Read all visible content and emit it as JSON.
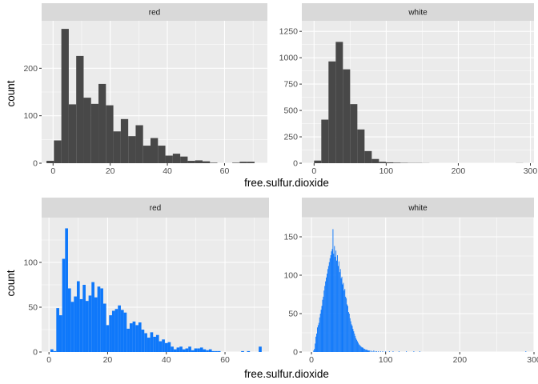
{
  "theme": {
    "panel_bg": "#ebebeb",
    "strip_bg": "#d9d9d9",
    "grid_major": "#ffffff",
    "top_bar_fill": "#484848",
    "bottom_bar_fill": "#0f78fa"
  },
  "chart_data": [
    {
      "type": "bar",
      "subtype": "histogram",
      "ylabel": "count",
      "xlabel": "free.sulfur.dioxide",
      "panels": [
        {
          "facet": "red",
          "xlim": [
            -4,
            75
          ],
          "ylim": [
            0,
            300
          ],
          "xticks": [
            0,
            20,
            40,
            60
          ],
          "yticks": [
            0,
            100,
            200
          ],
          "binwidth": 2.6,
          "bins": [
            {
              "x": -1.0,
              "count": 5
            },
            {
              "x": 1.6,
              "count": 48
            },
            {
              "x": 4.2,
              "count": 283
            },
            {
              "x": 6.8,
              "count": 124
            },
            {
              "x": 9.4,
              "count": 226
            },
            {
              "x": 12.0,
              "count": 138
            },
            {
              "x": 14.6,
              "count": 125
            },
            {
              "x": 17.2,
              "count": 167
            },
            {
              "x": 19.8,
              "count": 122
            },
            {
              "x": 22.4,
              "count": 67
            },
            {
              "x": 25.0,
              "count": 93
            },
            {
              "x": 27.6,
              "count": 57
            },
            {
              "x": 30.2,
              "count": 80
            },
            {
              "x": 32.8,
              "count": 37
            },
            {
              "x": 35.4,
              "count": 53
            },
            {
              "x": 38.0,
              "count": 37
            },
            {
              "x": 40.6,
              "count": 16
            },
            {
              "x": 43.2,
              "count": 20
            },
            {
              "x": 45.8,
              "count": 14
            },
            {
              "x": 48.4,
              "count": 5
            },
            {
              "x": 51.0,
              "count": 6
            },
            {
              "x": 53.6,
              "count": 4
            },
            {
              "x": 56.2,
              "count": 1
            },
            {
              "x": 58.8,
              "count": 0
            },
            {
              "x": 61.4,
              "count": 0
            },
            {
              "x": 64.0,
              "count": 1
            },
            {
              "x": 66.6,
              "count": 3
            },
            {
              "x": 69.2,
              "count": 3
            }
          ]
        },
        {
          "facet": "white",
          "xlim": [
            -17,
            305
          ],
          "ylim": [
            0,
            1350
          ],
          "xticks": [
            0,
            100,
            200,
            300
          ],
          "yticks": [
            0,
            250,
            500,
            750,
            1000,
            1250
          ],
          "binwidth": 10,
          "bins": [
            {
              "x": 5,
              "count": 25
            },
            {
              "x": 15,
              "count": 413
            },
            {
              "x": 25,
              "count": 965
            },
            {
              "x": 35,
              "count": 1150
            },
            {
              "x": 45,
              "count": 890
            },
            {
              "x": 55,
              "count": 560
            },
            {
              "x": 65,
              "count": 320
            },
            {
              "x": 75,
              "count": 115
            },
            {
              "x": 85,
              "count": 40
            },
            {
              "x": 95,
              "count": 13
            },
            {
              "x": 105,
              "count": 8
            },
            {
              "x": 115,
              "count": 5
            },
            {
              "x": 125,
              "count": 3
            },
            {
              "x": 135,
              "count": 2
            },
            {
              "x": 145,
              "count": 2
            },
            {
              "x": 155,
              "count": 1
            },
            {
              "x": 285,
              "count": 1
            }
          ]
        }
      ]
    },
    {
      "type": "bar",
      "subtype": "histogram",
      "ylabel": "count",
      "xlabel": "free.sulfur.dioxide",
      "panels": [
        {
          "facet": "red",
          "xlim": [
            -2.5,
            75
          ],
          "ylim": [
            0,
            150
          ],
          "xticks": [
            0,
            20,
            40,
            60
          ],
          "yticks": [
            0,
            50,
            100
          ],
          "binwidth": 1,
          "bins": [
            {
              "x": 1,
              "count": 3
            },
            {
              "x": 2,
              "count": 1
            },
            {
              "x": 3,
              "count": 49
            },
            {
              "x": 4,
              "count": 41
            },
            {
              "x": 5,
              "count": 104
            },
            {
              "x": 6,
              "count": 138
            },
            {
              "x": 7,
              "count": 71
            },
            {
              "x": 8,
              "count": 56
            },
            {
              "x": 9,
              "count": 62
            },
            {
              "x": 10,
              "count": 79
            },
            {
              "x": 11,
              "count": 59
            },
            {
              "x": 12,
              "count": 75
            },
            {
              "x": 13,
              "count": 57
            },
            {
              "x": 14,
              "count": 63
            },
            {
              "x": 15,
              "count": 78
            },
            {
              "x": 16,
              "count": 61
            },
            {
              "x": 17,
              "count": 73
            },
            {
              "x": 18,
              "count": 71
            },
            {
              "x": 19,
              "count": 54
            },
            {
              "x": 20,
              "count": 30
            },
            {
              "x": 21,
              "count": 41
            },
            {
              "x": 22,
              "count": 46
            },
            {
              "x": 23,
              "count": 48
            },
            {
              "x": 24,
              "count": 52
            },
            {
              "x": 25,
              "count": 47
            },
            {
              "x": 26,
              "count": 44
            },
            {
              "x": 27,
              "count": 26
            },
            {
              "x": 28,
              "count": 32
            },
            {
              "x": 29,
              "count": 34
            },
            {
              "x": 30,
              "count": 30
            },
            {
              "x": 31,
              "count": 33
            },
            {
              "x": 32,
              "count": 25
            },
            {
              "x": 33,
              "count": 21
            },
            {
              "x": 34,
              "count": 16
            },
            {
              "x": 35,
              "count": 22
            },
            {
              "x": 36,
              "count": 17
            },
            {
              "x": 37,
              "count": 19
            },
            {
              "x": 38,
              "count": 12
            },
            {
              "x": 39,
              "count": 14
            },
            {
              "x": 40,
              "count": 10
            },
            {
              "x": 41,
              "count": 11
            },
            {
              "x": 42,
              "count": 6
            },
            {
              "x": 43,
              "count": 3
            },
            {
              "x": 44,
              "count": 5
            },
            {
              "x": 45,
              "count": 6
            },
            {
              "x": 46,
              "count": 3
            },
            {
              "x": 47,
              "count": 4
            },
            {
              "x": 48,
              "count": 6
            },
            {
              "x": 49,
              "count": 2
            },
            {
              "x": 50,
              "count": 4
            },
            {
              "x": 51,
              "count": 4
            },
            {
              "x": 52,
              "count": 5
            },
            {
              "x": 53,
              "count": 3
            },
            {
              "x": 54,
              "count": 2
            },
            {
              "x": 55,
              "count": 3
            },
            {
              "x": 56,
              "count": 1
            },
            {
              "x": 57,
              "count": 1
            },
            {
              "x": 58,
              "count": 1
            },
            {
              "x": 66,
              "count": 1
            },
            {
              "x": 68,
              "count": 1
            },
            {
              "x": 72,
              "count": 6
            }
          ]
        },
        {
          "facet": "white",
          "xlim": [
            -13,
            300
          ],
          "ylim": [
            0,
            175
          ],
          "xticks": [
            0,
            100,
            200,
            300
          ],
          "yticks": [
            0,
            50,
            100,
            150
          ],
          "binwidth": 1,
          "bins": [
            {
              "x": 3,
              "count": 2
            },
            {
              "x": 4,
              "count": 4
            },
            {
              "x": 5,
              "count": 11
            },
            {
              "x": 6,
              "count": 20
            },
            {
              "x": 7,
              "count": 24
            },
            {
              "x": 8,
              "count": 32
            },
            {
              "x": 9,
              "count": 35
            },
            {
              "x": 10,
              "count": 38
            },
            {
              "x": 11,
              "count": 45
            },
            {
              "x": 12,
              "count": 50
            },
            {
              "x": 13,
              "count": 55
            },
            {
              "x": 14,
              "count": 60
            },
            {
              "x": 15,
              "count": 68
            },
            {
              "x": 16,
              "count": 72
            },
            {
              "x": 17,
              "count": 80
            },
            {
              "x": 18,
              "count": 86
            },
            {
              "x": 19,
              "count": 92
            },
            {
              "x": 20,
              "count": 97
            },
            {
              "x": 21,
              "count": 102
            },
            {
              "x": 22,
              "count": 108
            },
            {
              "x": 23,
              "count": 112
            },
            {
              "x": 24,
              "count": 117
            },
            {
              "x": 25,
              "count": 122
            },
            {
              "x": 26,
              "count": 126
            },
            {
              "x": 27,
              "count": 131
            },
            {
              "x": 28,
              "count": 134
            },
            {
              "x": 29,
              "count": 160
            },
            {
              "x": 30,
              "count": 128
            },
            {
              "x": 31,
              "count": 138
            },
            {
              "x": 32,
              "count": 124
            },
            {
              "x": 33,
              "count": 132
            },
            {
              "x": 34,
              "count": 119
            },
            {
              "x": 35,
              "count": 126
            },
            {
              "x": 36,
              "count": 112
            },
            {
              "x": 37,
              "count": 118
            },
            {
              "x": 38,
              "count": 104
            },
            {
              "x": 39,
              "count": 108
            },
            {
              "x": 40,
              "count": 96
            },
            {
              "x": 41,
              "count": 98
            },
            {
              "x": 42,
              "count": 88
            },
            {
              "x": 43,
              "count": 90
            },
            {
              "x": 44,
              "count": 80
            },
            {
              "x": 45,
              "count": 82
            },
            {
              "x": 46,
              "count": 72
            },
            {
              "x": 47,
              "count": 70
            },
            {
              "x": 48,
              "count": 62
            },
            {
              "x": 49,
              "count": 60
            },
            {
              "x": 50,
              "count": 52
            },
            {
              "x": 51,
              "count": 50
            },
            {
              "x": 52,
              "count": 44
            },
            {
              "x": 53,
              "count": 40
            },
            {
              "x": 54,
              "count": 36
            },
            {
              "x": 55,
              "count": 34
            },
            {
              "x": 56,
              "count": 30
            },
            {
              "x": 57,
              "count": 27
            },
            {
              "x": 58,
              "count": 24
            },
            {
              "x": 59,
              "count": 21
            },
            {
              "x": 60,
              "count": 18
            },
            {
              "x": 61,
              "count": 16
            },
            {
              "x": 62,
              "count": 14
            },
            {
              "x": 63,
              "count": 12
            },
            {
              "x": 64,
              "count": 10
            },
            {
              "x": 65,
              "count": 9
            },
            {
              "x": 66,
              "count": 8
            },
            {
              "x": 67,
              "count": 7
            },
            {
              "x": 68,
              "count": 6
            },
            {
              "x": 69,
              "count": 6
            },
            {
              "x": 70,
              "count": 5
            },
            {
              "x": 71,
              "count": 4
            },
            {
              "x": 72,
              "count": 4
            },
            {
              "x": 73,
              "count": 3
            },
            {
              "x": 74,
              "count": 3
            },
            {
              "x": 75,
              "count": 3
            },
            {
              "x": 76,
              "count": 2
            },
            {
              "x": 77,
              "count": 2
            },
            {
              "x": 78,
              "count": 2
            },
            {
              "x": 80,
              "count": 2
            },
            {
              "x": 82,
              "count": 1
            },
            {
              "x": 84,
              "count": 2
            },
            {
              "x": 86,
              "count": 1
            },
            {
              "x": 88,
              "count": 1
            },
            {
              "x": 90,
              "count": 1
            },
            {
              "x": 93,
              "count": 1
            },
            {
              "x": 96,
              "count": 1
            },
            {
              "x": 100,
              "count": 1
            },
            {
              "x": 105,
              "count": 1
            },
            {
              "x": 110,
              "count": 1
            },
            {
              "x": 118,
              "count": 1
            },
            {
              "x": 128,
              "count": 1
            },
            {
              "x": 138,
              "count": 1
            },
            {
              "x": 146,
              "count": 1
            },
            {
              "x": 289,
              "count": 1
            }
          ]
        }
      ]
    }
  ]
}
